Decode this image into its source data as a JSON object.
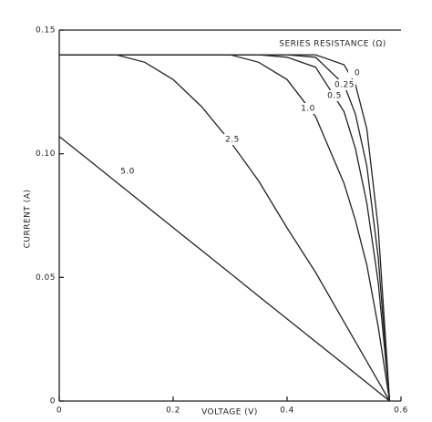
{
  "chart_data": {
    "type": "line",
    "x_label": "VOLTAGE (V)",
    "y_label": "CURRENT (A)",
    "legend_title": "SERIES RESISTANCE (Ω)",
    "x": [
      0,
      0.05,
      0.1,
      0.15,
      0.2,
      0.25,
      0.3,
      0.35,
      0.4,
      0.45,
      0.5,
      0.52,
      0.54,
      0.56,
      0.58
    ],
    "series": [
      {
        "name": "0",
        "color": "#222222",
        "values": [
          0.14,
          0.14,
          0.14,
          0.14,
          0.14,
          0.14,
          0.14,
          0.14,
          0.14,
          0.14,
          0.136,
          0.128,
          0.11,
          0.07,
          0
        ]
      },
      {
        "name": "0.25",
        "color": "#222222",
        "values": [
          0.14,
          0.14,
          0.14,
          0.14,
          0.14,
          0.14,
          0.14,
          0.14,
          0.14,
          0.139,
          0.128,
          0.116,
          0.095,
          0.058,
          0
        ]
      },
      {
        "name": "0.5",
        "color": "#222222",
        "values": [
          0.14,
          0.14,
          0.14,
          0.14,
          0.14,
          0.14,
          0.14,
          0.14,
          0.139,
          0.135,
          0.117,
          0.102,
          0.08,
          0.048,
          0
        ]
      },
      {
        "name": "1.0",
        "color": "#222222",
        "values": [
          0.14,
          0.14,
          0.14,
          0.14,
          0.14,
          0.14,
          0.14,
          0.137,
          0.13,
          0.115,
          0.088,
          0.073,
          0.055,
          0.03,
          0
        ]
      },
      {
        "name": "2.5",
        "color": "#222222",
        "values": [
          0.14,
          0.14,
          0.14,
          0.137,
          0.13,
          0.119,
          0.105,
          0.089,
          0.07,
          0.052,
          0.032,
          0.024,
          0.016,
          0.008,
          0
        ]
      },
      {
        "name": "5.0",
        "color": "#222222",
        "values": [
          0.107,
          0.0978,
          0.0886,
          0.0793,
          0.0701,
          0.0609,
          0.0517,
          0.0424,
          0.0332,
          0.024,
          0.0148,
          0.0111,
          0.0074,
          0.0037,
          0
        ]
      }
    ],
    "xlim": [
      0,
      0.6
    ],
    "ylim": [
      0,
      0.15
    ],
    "xticks": [
      0,
      0.2,
      0.4,
      0.6
    ],
    "yticks": [
      0,
      0.05,
      {
        "value": 0.1,
        "label": "0.10"
      },
      {
        "value": 0.15,
        "label": "0.15"
      }
    ]
  }
}
